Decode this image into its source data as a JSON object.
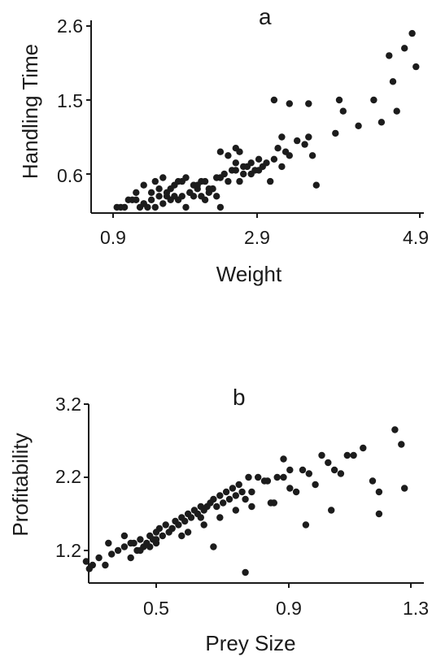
{
  "chart_data": [
    {
      "type": "scatter",
      "panel_label": "a",
      "xlabel": "Weight",
      "ylabel": "Handling Time",
      "xlim": [
        0.9,
        4.9
      ],
      "ylim": [
        0.1,
        2.6
      ],
      "xticks": [
        "0.9",
        "2.9",
        "4.9"
      ],
      "yticks": [
        "0.6",
        "1.5",
        "2.6"
      ],
      "x": [
        0.95,
        1.0,
        1.05,
        1.1,
        1.15,
        1.2,
        1.25,
        1.3,
        1.35,
        1.4,
        1.45,
        1.5,
        1.55,
        1.6,
        1.65,
        1.7,
        1.75,
        1.8,
        1.85,
        1.9,
        1.95,
        2.0,
        2.05,
        2.1,
        2.15,
        2.2,
        2.25,
        2.3,
        1.2,
        1.3,
        1.4,
        1.5,
        1.6,
        1.7,
        1.8,
        1.9,
        2.0,
        2.1,
        2.2,
        2.3,
        2.4,
        2.5,
        2.6,
        1.3,
        1.45,
        1.55,
        1.65,
        1.75,
        1.85,
        1.95,
        2.05,
        2.15,
        2.25,
        2.35,
        2.45,
        2.55,
        2.65,
        2.7,
        2.75,
        2.8,
        2.85,
        2.3,
        2.4,
        2.5,
        2.6,
        2.7,
        2.8,
        2.9,
        2.95,
        3.0,
        3.05,
        3.1,
        3.15,
        3.2,
        3.3,
        3.4,
        3.45,
        3.5,
        3.55,
        2.5,
        2.55,
        3.0,
        3.1,
        3.2,
        3.45,
        3.8,
        3.85,
        3.9,
        4.1,
        4.3,
        4.4,
        4.5,
        4.55,
        4.6,
        4.7,
        4.8,
        4.85
      ],
      "y": [
        0.15,
        0.15,
        0.15,
        0.25,
        0.25,
        0.25,
        0.15,
        0.2,
        0.15,
        0.25,
        0.15,
        0.3,
        0.2,
        0.35,
        0.25,
        0.3,
        0.25,
        0.3,
        0.15,
        0.35,
        0.3,
        0.4,
        0.3,
        0.25,
        0.35,
        0.4,
        0.3,
        0.15,
        0.35,
        0.2,
        0.35,
        0.4,
        0.3,
        0.45,
        0.5,
        0.35,
        0.45,
        0.5,
        0.4,
        0.55,
        0.5,
        0.65,
        0.6,
        0.45,
        0.5,
        0.55,
        0.4,
        0.5,
        0.55,
        0.45,
        0.5,
        0.4,
        0.55,
        0.6,
        0.65,
        0.5,
        0.7,
        0.75,
        0.65,
        0.8,
        0.7,
        0.9,
        0.85,
        0.75,
        0.7,
        0.6,
        0.65,
        0.75,
        0.5,
        0.8,
        0.95,
        0.7,
        0.9,
        0.85,
        1.05,
        1.0,
        1.1,
        0.85,
        0.45,
        0.95,
        0.9,
        1.6,
        1.1,
        1.55,
        1.55,
        1.15,
        1.6,
        1.45,
        1.25,
        1.6,
        1.3,
        2.2,
        1.85,
        1.45,
        2.3,
        2.5,
        2.05
      ],
      "series_color": "#1c1c1c"
    },
    {
      "type": "scatter",
      "panel_label": "b",
      "xlabel": "Prey Size",
      "ylabel": "Profitability",
      "xlim": [
        0.25,
        1.3
      ],
      "ylim": [
        0.8,
        3.2
      ],
      "xticks": [
        "0.5",
        "0.9",
        "1.3"
      ],
      "yticks": [
        "1.2",
        "2.2",
        "3.2"
      ],
      "x": [
        0.28,
        0.29,
        0.3,
        0.32,
        0.34,
        0.36,
        0.38,
        0.4,
        0.42,
        0.44,
        0.45,
        0.46,
        0.47,
        0.48,
        0.49,
        0.5,
        0.5,
        0.51,
        0.52,
        0.53,
        0.54,
        0.55,
        0.56,
        0.57,
        0.58,
        0.59,
        0.6,
        0.61,
        0.62,
        0.63,
        0.64,
        0.65,
        0.66,
        0.67,
        0.68,
        0.69,
        0.7,
        0.71,
        0.72,
        0.73,
        0.74,
        0.75,
        0.76,
        0.77,
        0.78,
        0.79,
        0.8,
        0.35,
        0.4,
        0.45,
        0.5,
        0.55,
        0.6,
        0.65,
        0.7,
        0.75,
        0.8,
        0.82,
        0.84,
        0.86,
        0.88,
        0.9,
        0.92,
        0.94,
        0.96,
        0.98,
        1.0,
        1.02,
        1.04,
        1.06,
        1.08,
        1.1,
        1.12,
        1.15,
        1.18,
        1.2,
        1.25,
        1.27,
        1.28,
        0.42,
        0.48,
        0.58,
        0.68,
        0.78,
        0.87,
        0.92,
        0.97,
        1.05,
        1.2,
        0.9,
        0.85,
        0.43,
        0.64
      ],
      "y": [
        1.05,
        0.95,
        1.0,
        1.1,
        1.0,
        1.15,
        1.2,
        1.25,
        1.3,
        1.2,
        1.35,
        1.25,
        1.3,
        1.4,
        1.35,
        1.45,
        1.3,
        1.5,
        1.4,
        1.55,
        1.45,
        1.5,
        1.6,
        1.55,
        1.65,
        1.6,
        1.7,
        1.65,
        1.75,
        1.7,
        1.8,
        1.75,
        1.8,
        1.85,
        1.9,
        1.8,
        1.95,
        1.85,
        2.0,
        1.9,
        2.05,
        1.95,
        2.1,
        2.0,
        1.9,
        2.2,
        2.0,
        1.3,
        1.4,
        1.2,
        1.35,
        1.5,
        1.45,
        1.55,
        1.65,
        1.75,
        1.8,
        2.2,
        2.15,
        1.85,
        2.2,
        2.2,
        2.3,
        2.0,
        2.3,
        2.25,
        2.1,
        2.5,
        2.4,
        2.3,
        2.25,
        2.5,
        2.5,
        2.6,
        2.15,
        2.0,
        2.85,
        2.65,
        2.05,
        1.1,
        1.25,
        1.4,
        1.25,
        0.9,
        1.85,
        2.05,
        1.55,
        1.75,
        1.7,
        2.45,
        2.15,
        1.3,
        1.65
      ],
      "series_color": "#1c1c1c"
    }
  ]
}
